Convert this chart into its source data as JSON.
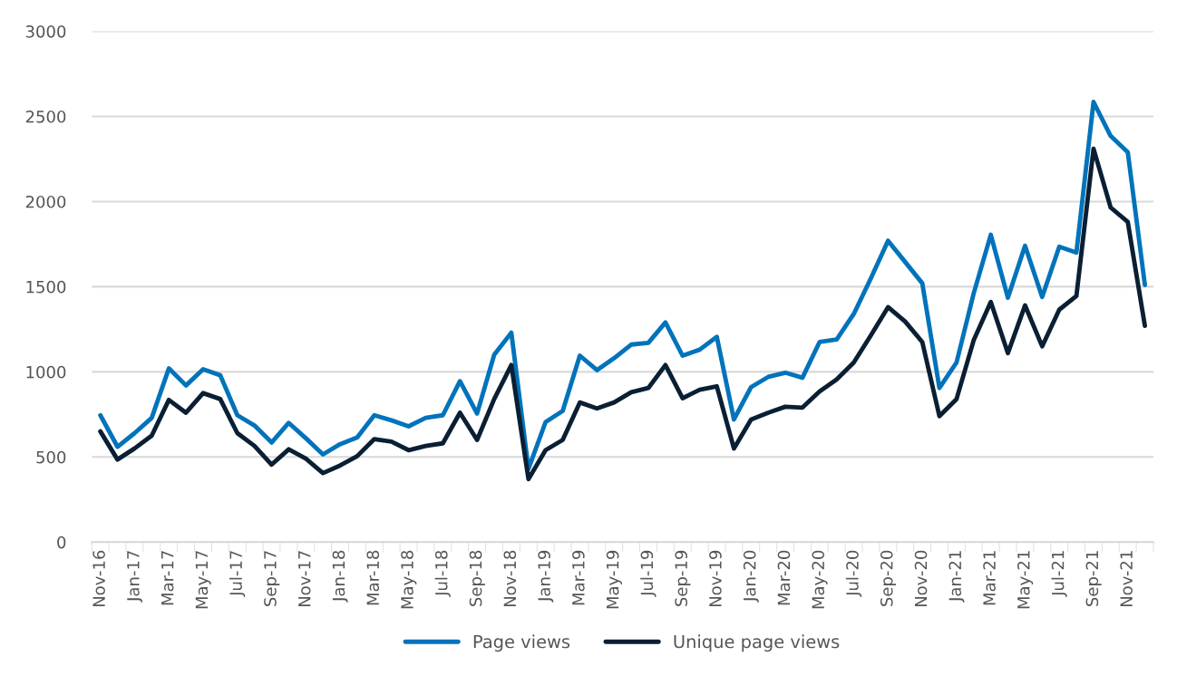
{
  "chart_data": {
    "type": "line",
    "categories": [
      "Nov-16",
      null,
      "Jan-17",
      null,
      "Mar-17",
      null,
      "May-17",
      null,
      "Jul-17",
      null,
      "Sep-17",
      null,
      "Nov-17",
      null,
      "Jan-18",
      null,
      "Mar-18",
      null,
      "May-18",
      null,
      "Jul-18",
      null,
      "Sep-18",
      null,
      "Nov-18",
      null,
      "Jan-19",
      null,
      "Mar-19",
      null,
      "May-19",
      null,
      "Jul-19",
      null,
      "Sep-19",
      null,
      "Nov-19",
      null,
      "Jan-20",
      null,
      "Mar-20",
      null,
      "May-20",
      null,
      "Jul-20",
      null,
      "Sep-20",
      null,
      "Nov-20",
      null,
      "Jan-21",
      null,
      "Mar-21",
      null,
      "May-21",
      null,
      "Jul-21",
      null,
      "Sep-21",
      null,
      "Nov-21",
      null
    ],
    "series": [
      {
        "name": "Page views",
        "color": "#0073bb",
        "values": [
          745,
          560,
          640,
          730,
          1020,
          920,
          1015,
          980,
          745,
          685,
          585,
          700,
          610,
          515,
          575,
          615,
          745,
          715,
          680,
          730,
          745,
          945,
          755,
          1100,
          1230,
          430,
          705,
          770,
          1095,
          1010,
          1080,
          1160,
          1170,
          1290,
          1095,
          1130,
          1205,
          720,
          910,
          970,
          995,
          965,
          1175,
          1190,
          1340,
          1550,
          1770,
          1645,
          1520,
          905,
          1055,
          1460,
          1805,
          1435,
          1740,
          1440,
          1735,
          1700,
          2585,
          2385,
          2290,
          1510
        ]
      },
      {
        "name": "Unique page views",
        "color": "#0a1f33",
        "values": [
          650,
          485,
          550,
          625,
          835,
          760,
          875,
          840,
          640,
          565,
          455,
          545,
          490,
          405,
          450,
          505,
          605,
          590,
          540,
          565,
          580,
          760,
          600,
          840,
          1040,
          370,
          540,
          600,
          820,
          785,
          820,
          880,
          905,
          1040,
          845,
          895,
          915,
          550,
          720,
          760,
          795,
          790,
          885,
          955,
          1055,
          1215,
          1380,
          1295,
          1175,
          740,
          840,
          1185,
          1410,
          1110,
          1390,
          1150,
          1365,
          1445,
          2310,
          1965,
          1880,
          1270
        ]
      }
    ],
    "ylim": [
      0,
      3000
    ],
    "yticks": [
      0,
      500,
      1000,
      1500,
      2000,
      2500,
      3000
    ],
    "grid": "y",
    "legend": "bottom",
    "marker": "none",
    "line_style": "solid"
  }
}
